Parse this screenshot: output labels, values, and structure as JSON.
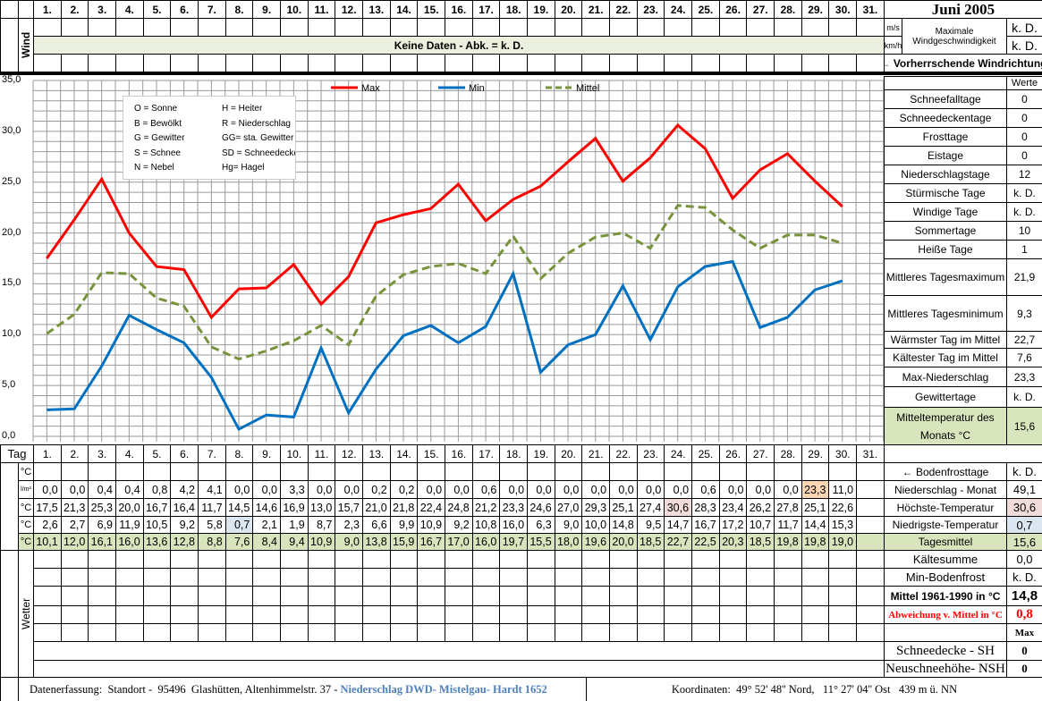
{
  "title": "Juni 2005",
  "days": [
    "1.",
    "2.",
    "3.",
    "4.",
    "5.",
    "6.",
    "7.",
    "8.",
    "9.",
    "10.",
    "11.",
    "12.",
    "13.",
    "14.",
    "15.",
    "16.",
    "17.",
    "18.",
    "19.",
    "20.",
    "21.",
    "22.",
    "23.",
    "24.",
    "25.",
    "26.",
    "27.",
    "28.",
    "29.",
    "30.",
    "31."
  ],
  "wind": {
    "label": "Wind",
    "no_data": "Keine Daten - Abk. = k. D.",
    "unit_ms": "m/s",
    "unit_kmh": "km/h",
    "max_label_1": "Maximale",
    "max_label_2": "Windgeschwindigkeit",
    "max_ms": "k. D.",
    "max_kmh": "k. D.",
    "direction": "← Vorherrschende Windrichtung"
  },
  "chart_data": {
    "type": "line",
    "x": [
      1,
      2,
      3,
      4,
      5,
      6,
      7,
      8,
      9,
      10,
      11,
      12,
      13,
      14,
      15,
      16,
      17,
      18,
      19,
      20,
      21,
      22,
      23,
      24,
      25,
      26,
      27,
      28,
      29,
      30
    ],
    "series": [
      {
        "name": "Max",
        "color": "#ff0000",
        "dash": false,
        "values": [
          17.5,
          21.3,
          25.3,
          20.0,
          16.7,
          16.4,
          11.7,
          14.5,
          14.6,
          16.9,
          13.0,
          15.7,
          21.0,
          21.8,
          22.4,
          24.8,
          21.2,
          23.3,
          24.6,
          27.0,
          29.3,
          25.1,
          27.4,
          30.6,
          28.3,
          23.4,
          26.2,
          27.8,
          25.1,
          22.6
        ]
      },
      {
        "name": "Min",
        "color": "#0070c0",
        "dash": false,
        "values": [
          2.6,
          2.7,
          6.9,
          11.9,
          10.5,
          9.2,
          5.8,
          0.7,
          2.1,
          1.9,
          8.7,
          2.3,
          6.6,
          9.9,
          10.9,
          9.2,
          10.8,
          16.0,
          6.3,
          9.0,
          10.0,
          14.8,
          9.5,
          14.7,
          16.7,
          17.2,
          10.7,
          11.7,
          14.4,
          15.3
        ]
      },
      {
        "name": "Mittel",
        "color": "#77933c",
        "dash": true,
        "values": [
          10.1,
          12.0,
          16.1,
          16.0,
          13.6,
          12.8,
          8.8,
          7.6,
          8.4,
          9.4,
          10.9,
          9.0,
          13.8,
          15.9,
          16.7,
          17.0,
          16.0,
          19.7,
          15.5,
          18.0,
          19.6,
          20.0,
          18.5,
          22.7,
          22.5,
          20.3,
          18.5,
          19.8,
          19.8,
          19.0
        ]
      }
    ],
    "ylim": [
      0,
      35
    ],
    "yticks": [
      "0,0",
      "5,0",
      "10,0",
      "15,0",
      "20,0",
      "25,0",
      "30,0",
      "35,0"
    ],
    "grid": true,
    "legend": "top"
  },
  "weather_legend": [
    [
      "O = Sonne",
      "H = Heiter"
    ],
    [
      "B = Bewölkt",
      "R = Niederschlag"
    ],
    [
      "G = Gewitter",
      "GG= sta. Gewitter"
    ],
    [
      "S = Schnee",
      "SD = Schneedecke"
    ],
    [
      "N = Nebel",
      "Hg= Hagel"
    ]
  ],
  "stats": {
    "header": "Werte",
    "rows": [
      {
        "label": "Schneefalltage",
        "value": "0"
      },
      {
        "label": "Schneedeckentage",
        "value": "0"
      },
      {
        "label": "Frosttage",
        "value": "0"
      },
      {
        "label": "Eistage",
        "value": "0"
      },
      {
        "label": "Niederschlagstage",
        "value": "12"
      },
      {
        "label": "Stürmische Tage",
        "value": "k. D."
      },
      {
        "label": "Windige Tage",
        "value": "k. D."
      },
      {
        "label": "Sommertage",
        "value": "10"
      },
      {
        "label": "Heiße Tage",
        "value": "1"
      },
      {
        "label": "Mittleres Tagesmaximum",
        "value": "21,9"
      },
      {
        "label": "Mittleres Tagesminimum",
        "value": "9,3"
      },
      {
        "label": "Wärmster Tag im Mittel",
        "value": "22,7"
      },
      {
        "label": "Kältester Tag im Mittel",
        "value": "7,6"
      },
      {
        "label": "Max-Niederschlag",
        "value": "23,3"
      },
      {
        "label": "Gewittertage",
        "value": "k. D."
      },
      {
        "label": "Mitteltemperatur des Monats °C",
        "value": "15,6"
      }
    ]
  },
  "table": {
    "tag_label": "Tag",
    "unit_c": "°C",
    "unit_precip": "l/m²",
    "precip": [
      "0,0",
      "0,0",
      "0,4",
      "0,4",
      "0,8",
      "4,2",
      "4,1",
      "0,0",
      "0,0",
      "3,3",
      "0,0",
      "0,0",
      "0,2",
      "0,2",
      "0,0",
      "0,0",
      "0,6",
      "0,0",
      "0,0",
      "0,0",
      "0,0",
      "0,0",
      "0,0",
      "0,0",
      "0,6",
      "0,0",
      "0,0",
      "0,0",
      "23,3",
      "11,0"
    ],
    "max": [
      "17,5",
      "21,3",
      "25,3",
      "20,0",
      "16,7",
      "16,4",
      "11,7",
      "14,5",
      "14,6",
      "16,9",
      "13,0",
      "15,7",
      "21,0",
      "21,8",
      "22,4",
      "24,8",
      "21,2",
      "23,3",
      "24,6",
      "27,0",
      "29,3",
      "25,1",
      "27,4",
      "30,6",
      "28,3",
      "23,4",
      "26,2",
      "27,8",
      "25,1",
      "22,6"
    ],
    "min": [
      "2,6",
      "2,7",
      "6,9",
      "11,9",
      "10,5",
      "9,2",
      "5,8",
      "0,7",
      "2,1",
      "1,9",
      "8,7",
      "2,3",
      "6,6",
      "9,9",
      "10,9",
      "9,2",
      "10,8",
      "16,0",
      "6,3",
      "9,0",
      "10,0",
      "14,8",
      "9,5",
      "14,7",
      "16,7",
      "17,2",
      "10,7",
      "11,7",
      "14,4",
      "15,3"
    ],
    "mean": [
      "10,1",
      "12,0",
      "16,1",
      "16,0",
      "13,6",
      "12,8",
      "8,8",
      "7,6",
      "8,4",
      "9,4",
      "10,9",
      "9,0",
      "13,8",
      "15,9",
      "16,7",
      "17,0",
      "16,0",
      "19,7",
      "15,5",
      "18,0",
      "19,6",
      "20,0",
      "18,5",
      "22,7",
      "22,5",
      "20,3",
      "18,5",
      "19,8",
      "19,8",
      "19,0"
    ],
    "wetter_label": "Wetter"
  },
  "summary": [
    {
      "label": "← Bodenfrosttage",
      "value": "k. D."
    },
    {
      "label": "Niederschlag - Monat",
      "value": "49,1"
    },
    {
      "label": "Höchste-Temperatur",
      "value": "30,6"
    },
    {
      "label": "Niedrigste-Temperatur",
      "value": "0,7"
    },
    {
      "label": "Tagesmittel",
      "value": "15,6"
    },
    {
      "label": "Kältesumme",
      "value": "0,0"
    },
    {
      "label": "Min-Bodenfrost",
      "value": "k. D."
    },
    {
      "label": "Mittel 1961-1990 in °C",
      "value": "14,8"
    },
    {
      "label": "Abweichung v. Mittel in °C",
      "value": "0,8"
    },
    {
      "label": "",
      "value": "Max"
    },
    {
      "label": "Schneedecke -   SH",
      "value": "0"
    },
    {
      "label": "Neuschneehöhe- NSH",
      "value": "0"
    }
  ],
  "footer": {
    "location": "Datenerfassung:  Standort -  95496  Glashütten, Altenhimmelstr. 37 - ",
    "precip_source": "Niederschlag DWD- Mistelgau- Hardt 1652",
    "coords": "Koordinaten:  49° 52' 48'' Nord,   11° 27' 04'' Ost   439 m ü. NN"
  },
  "colors": {
    "mean_bg": "#d8e4bc",
    "wind_band": "#ebf1de",
    "max_hl": "#f2dcdb",
    "min_hl": "#dce6f1",
    "precip_hl": "#fcd5b4",
    "source_link": "#4f81bd",
    "deviation": "#ff0000"
  }
}
